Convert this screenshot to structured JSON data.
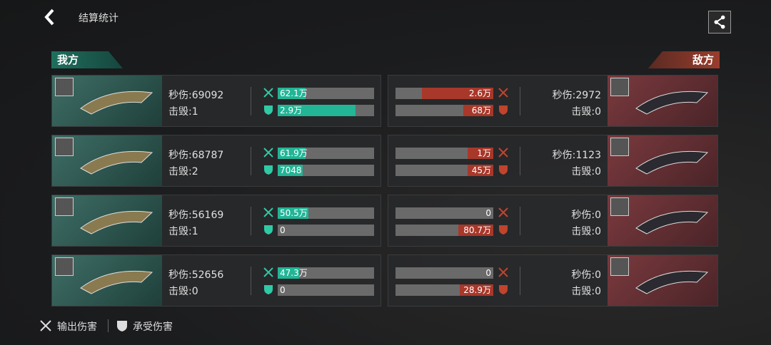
{
  "header": {
    "title": "结算统计"
  },
  "teams": {
    "ally": "我方",
    "enemy": "敌方"
  },
  "rows": [
    {
      "ally": {
        "dps": "秒伤:69092",
        "kills": "击毁:1",
        "dealt": "62.1万",
        "taken": "2.9万"
      },
      "enemy": {
        "dps": "秒伤:2972",
        "kills": "击毁:0",
        "dealt": "2.6万",
        "taken": "68万"
      }
    },
    {
      "ally": {
        "dps": "秒伤:68787",
        "kills": "击毁:2",
        "dealt": "61.9万",
        "taken": "7048"
      },
      "enemy": {
        "dps": "秒伤:1123",
        "kills": "击毁:0",
        "dealt": "1万",
        "taken": "45万"
      }
    },
    {
      "ally": {
        "dps": "秒伤:56169",
        "kills": "击毁:1",
        "dealt": "50.5万",
        "taken": "0"
      },
      "enemy": {
        "dps": "秒伤:0",
        "kills": "击毁:0",
        "dealt": "0",
        "taken": "80.7万"
      }
    },
    {
      "ally": {
        "dps": "秒伤:52656",
        "kills": "击毁:0",
        "dealt": "47.3万",
        "taken": "0"
      },
      "enemy": {
        "dps": "秒伤:0",
        "kills": "击毁:0",
        "dealt": "0",
        "taken": "28.9万"
      }
    }
  ],
  "legend": {
    "dealt": "输出伤害",
    "taken": "承受伤害"
  }
}
